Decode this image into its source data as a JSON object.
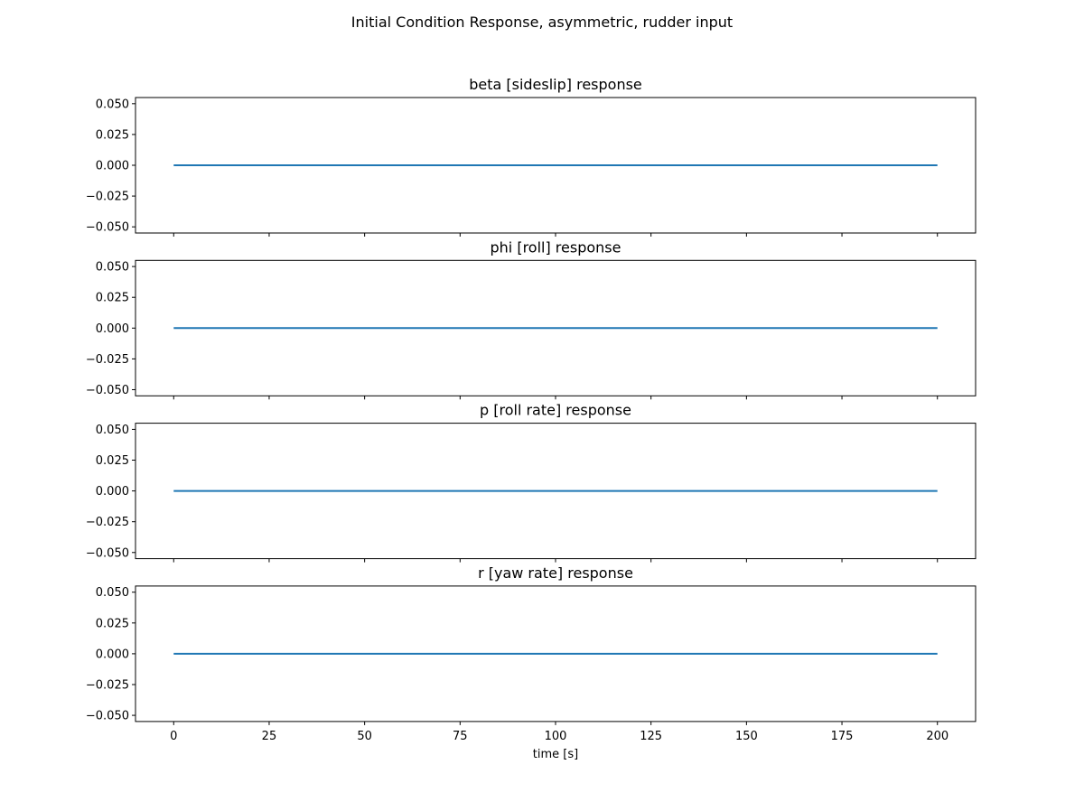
{
  "figure_title": "Initial Condition Response, asymmetric, rudder input",
  "colors": {
    "series": "#1f77b4"
  },
  "chart_data": [
    {
      "type": "line",
      "title": "beta [sideslip] response",
      "xlabel": "",
      "ylabel": "",
      "xlim": [
        -10,
        210
      ],
      "ylim": [
        -0.055,
        0.055
      ],
      "xticks": [
        0,
        25,
        50,
        75,
        100,
        125,
        150,
        175,
        200
      ],
      "xtick_labels_shown": false,
      "yticks": [
        -0.05,
        -0.025,
        0.0,
        0.025,
        0.05
      ],
      "ytick_labels": [
        "−0.050",
        "−0.025",
        "0.000",
        "0.025",
        "0.050"
      ],
      "grid": false,
      "series": [
        {
          "x": [
            0,
            200
          ],
          "y": [
            0,
            0
          ]
        }
      ]
    },
    {
      "type": "line",
      "title": "phi [roll] response",
      "xlabel": "",
      "ylabel": "",
      "xlim": [
        -10,
        210
      ],
      "ylim": [
        -0.055,
        0.055
      ],
      "xticks": [
        0,
        25,
        50,
        75,
        100,
        125,
        150,
        175,
        200
      ],
      "xtick_labels_shown": false,
      "yticks": [
        -0.05,
        -0.025,
        0.0,
        0.025,
        0.05
      ],
      "ytick_labels": [
        "−0.050",
        "−0.025",
        "0.000",
        "0.025",
        "0.050"
      ],
      "grid": false,
      "series": [
        {
          "x": [
            0,
            200
          ],
          "y": [
            0,
            0
          ]
        }
      ]
    },
    {
      "type": "line",
      "title": "p [roll rate] response",
      "xlabel": "",
      "ylabel": "",
      "xlim": [
        -10,
        210
      ],
      "ylim": [
        -0.055,
        0.055
      ],
      "xticks": [
        0,
        25,
        50,
        75,
        100,
        125,
        150,
        175,
        200
      ],
      "xtick_labels_shown": false,
      "yticks": [
        -0.05,
        -0.025,
        0.0,
        0.025,
        0.05
      ],
      "ytick_labels": [
        "−0.050",
        "−0.025",
        "0.000",
        "0.025",
        "0.050"
      ],
      "grid": false,
      "series": [
        {
          "x": [
            0,
            200
          ],
          "y": [
            0,
            0
          ]
        }
      ]
    },
    {
      "type": "line",
      "title": "r [yaw rate] response",
      "xlabel": "time [s]",
      "ylabel": "",
      "xlim": [
        -10,
        210
      ],
      "ylim": [
        -0.055,
        0.055
      ],
      "xticks": [
        0,
        25,
        50,
        75,
        100,
        125,
        150,
        175,
        200
      ],
      "xtick_labels": [
        "0",
        "25",
        "50",
        "75",
        "100",
        "125",
        "150",
        "175",
        "200"
      ],
      "xtick_labels_shown": true,
      "yticks": [
        -0.05,
        -0.025,
        0.0,
        0.025,
        0.05
      ],
      "ytick_labels": [
        "−0.050",
        "−0.025",
        "0.000",
        "0.025",
        "0.050"
      ],
      "grid": false,
      "series": [
        {
          "x": [
            0,
            200
          ],
          "y": [
            0,
            0
          ]
        }
      ]
    }
  ]
}
